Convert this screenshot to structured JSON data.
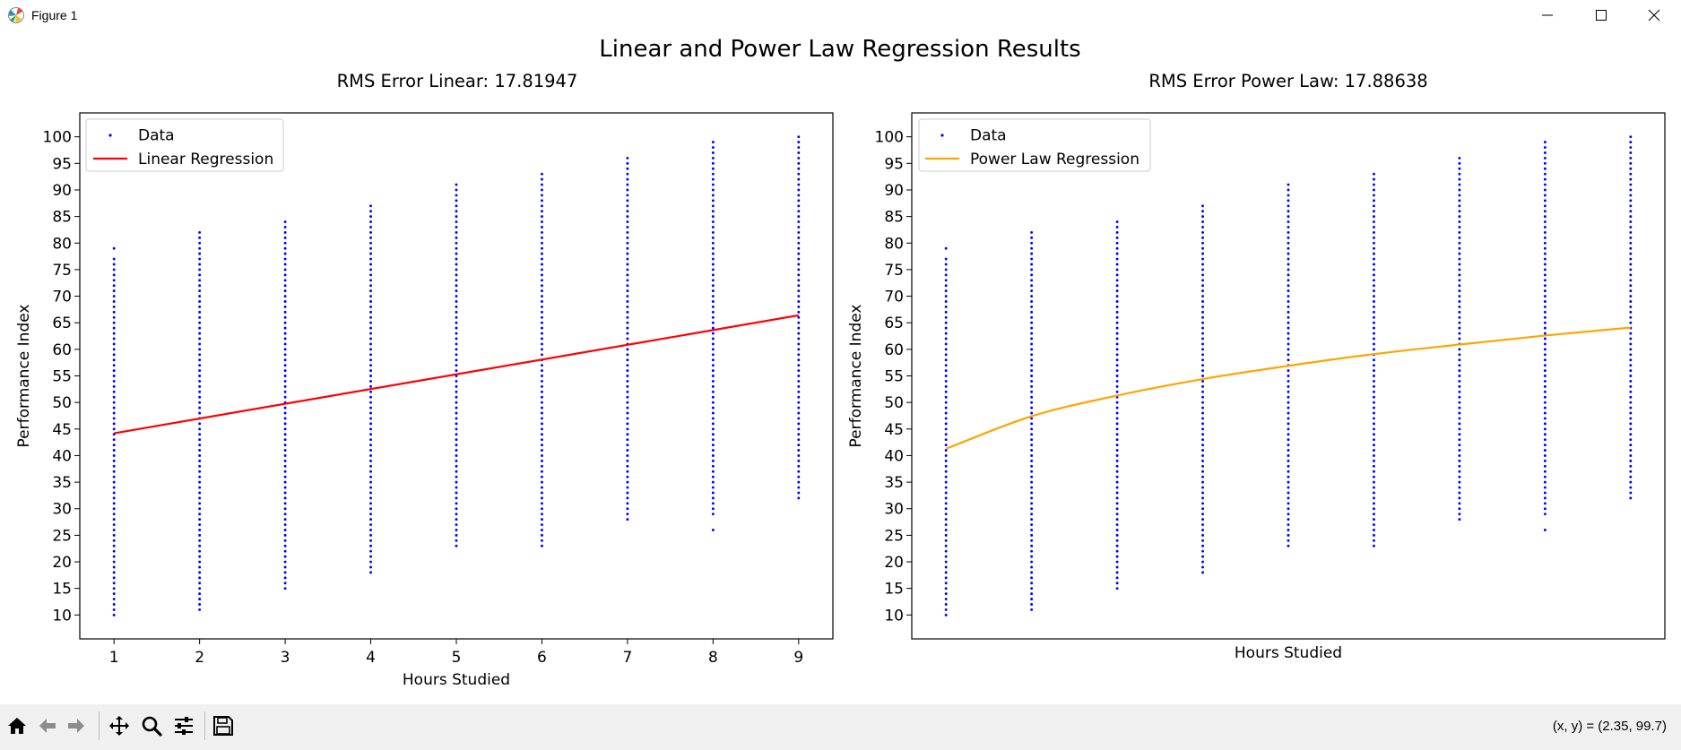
{
  "window": {
    "title": "Figure 1"
  },
  "figure": {
    "suptitle": "Linear and Power Law Regression Results"
  },
  "chart_data": [
    {
      "type": "scatter",
      "title": "RMS Error Linear: 17.81947",
      "xlabel": "Hours Studied",
      "ylabel": "Performance Index",
      "xlim": [
        0.6,
        9.4
      ],
      "ylim": [
        5.5,
        104.5
      ],
      "x_ticks": [
        1,
        2,
        3,
        4,
        5,
        6,
        7,
        8,
        9
      ],
      "y_ticks": [
        10,
        15,
        20,
        25,
        30,
        35,
        40,
        45,
        50,
        55,
        60,
        65,
        70,
        75,
        80,
        85,
        90,
        95,
        100
      ],
      "show_x_tick_labels": true,
      "grid": false,
      "legend": {
        "location": "upper left",
        "entries": [
          "Data",
          "Linear Regression"
        ]
      },
      "series": [
        {
          "name": "Data",
          "kind": "points",
          "color": "#0000ff",
          "x": [
            1,
            2,
            3,
            4,
            5,
            6,
            7,
            8,
            9
          ],
          "y_ranges": [
            [
              10,
              77
            ],
            [
              11,
              82
            ],
            [
              15,
              84
            ],
            [
              18,
              87
            ],
            [
              23,
              91
            ],
            [
              23,
              93
            ],
            [
              28,
              96
            ],
            [
              29,
              99
            ],
            [
              32,
              100
            ]
          ],
          "y_isolated": [
            [
              1,
              79
            ],
            [
              2,
              13
            ],
            [
              8,
              26
            ]
          ],
          "y_step": 1
        },
        {
          "name": "Linear Regression",
          "kind": "line",
          "color": "#ff0000",
          "x": [
            1,
            9
          ],
          "y": [
            44.2,
            66.4
          ]
        }
      ]
    },
    {
      "type": "scatter",
      "title": "RMS Error Power Law: 17.88638",
      "xlabel": "Hours Studied",
      "ylabel": "Performance Index",
      "xlim": [
        0.6,
        9.4
      ],
      "ylim": [
        5.5,
        104.5
      ],
      "x_ticks": [],
      "y_ticks": [
        10,
        15,
        20,
        25,
        30,
        35,
        40,
        45,
        50,
        55,
        60,
        65,
        70,
        75,
        80,
        85,
        90,
        95,
        100
      ],
      "show_x_tick_labels": false,
      "grid": false,
      "legend": {
        "location": "upper left",
        "entries": [
          "Data",
          "Power Law Regression"
        ]
      },
      "series": [
        {
          "name": "Data",
          "kind": "points",
          "color": "#0000ff",
          "x": [
            1,
            2,
            3,
            4,
            5,
            6,
            7,
            8,
            9
          ],
          "y_ranges": [
            [
              10,
              77
            ],
            [
              11,
              82
            ],
            [
              15,
              84
            ],
            [
              18,
              87
            ],
            [
              23,
              91
            ],
            [
              23,
              93
            ],
            [
              28,
              96
            ],
            [
              29,
              99
            ],
            [
              32,
              100
            ]
          ],
          "y_isolated": [
            [
              1,
              79
            ],
            [
              2,
              13
            ],
            [
              8,
              26
            ]
          ],
          "y_step": 1
        },
        {
          "name": "Power Law Regression",
          "kind": "curve",
          "color": "#ffa500",
          "x": [
            1,
            2,
            3,
            4,
            5,
            6,
            7,
            8,
            9
          ],
          "y": [
            41.3,
            47.4,
            51.3,
            54.4,
            56.9,
            59.1,
            60.9,
            62.6,
            64.1
          ]
        }
      ]
    }
  ],
  "toolbar": {
    "buttons": [
      "home-icon",
      "back-arrow-icon",
      "forward-arrow-icon",
      "pan-icon",
      "zoom-icon",
      "configure-subplots-icon",
      "save-icon"
    ],
    "coordinates": "(x, y) = (2.35, 99.7)"
  }
}
